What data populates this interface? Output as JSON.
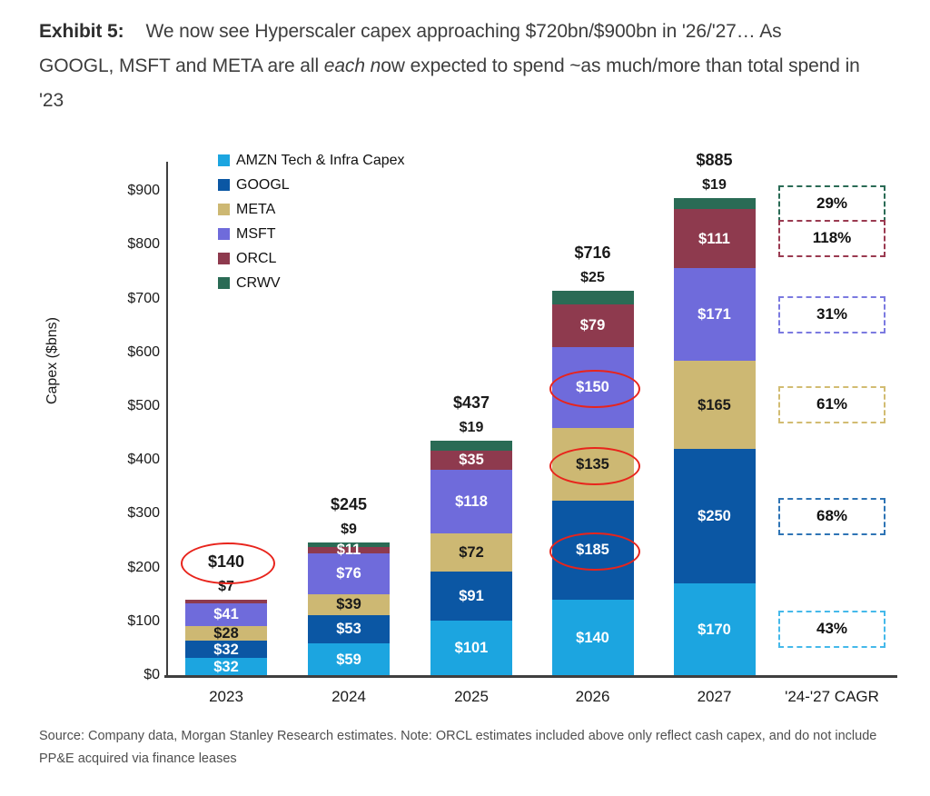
{
  "title": {
    "exhibit_label": "Exhibit 5:",
    "text_before_italic": "We now see Hyperscaler capex approaching $720bn/$900bn in '26/'27… As GOOGL, MSFT and META are all ",
    "italic_text": "each n",
    "text_after_italic": "ow expected to spend ~as much/more than total spend in '23"
  },
  "source_note": "Source: Company data, Morgan Stanley Research estimates. Note: ORCL estimates included above only reflect cash capex, and do not include PP&E acquired via finance leases",
  "chart_data": {
    "type": "bar",
    "stacked": true,
    "ylabel": "Capex ($bns)",
    "ylim": [
      0,
      950
    ],
    "grid": false,
    "legend_position": "top-left-inside",
    "annotation_color": "#e8241c",
    "yticks": [
      {
        "v": 0,
        "label": "$0"
      },
      {
        "v": 100,
        "label": "$100"
      },
      {
        "v": 200,
        "label": "$200"
      },
      {
        "v": 300,
        "label": "$300"
      },
      {
        "v": 400,
        "label": "$400"
      },
      {
        "v": 500,
        "label": "$500"
      },
      {
        "v": 600,
        "label": "$600"
      },
      {
        "v": 700,
        "label": "$700"
      },
      {
        "v": 800,
        "label": "$800"
      },
      {
        "v": 900,
        "label": "$900"
      }
    ],
    "series": [
      {
        "key": "AMZN",
        "name": "AMZN Tech & Infra Capex",
        "color": "#1ca5e0",
        "label_color": "#ffffff"
      },
      {
        "key": "GOOGL",
        "name": "GOOGL",
        "color": "#0b57a4",
        "label_color": "#ffffff"
      },
      {
        "key": "META",
        "name": "META",
        "color": "#cdb873",
        "label_color": "#1a1a1a"
      },
      {
        "key": "MSFT",
        "name": "MSFT",
        "color": "#6f6bdb",
        "label_color": "#ffffff"
      },
      {
        "key": "ORCL",
        "name": "ORCL",
        "color": "#8e3a4e",
        "label_color": "#ffffff"
      },
      {
        "key": "CRWV",
        "name": "CRWV",
        "color": "#2a6b55",
        "label_color": "#ffffff"
      }
    ],
    "categories": [
      "2023",
      "2024",
      "2025",
      "2026",
      "2027"
    ],
    "bars": [
      {
        "category": "2023",
        "total_label": "$140",
        "total_circled": true,
        "above_label": "$7",
        "values": {
          "AMZN": 32,
          "GOOGL": 32,
          "META": 28,
          "MSFT": 41,
          "ORCL": 7,
          "CRWV": 0
        },
        "segment_labels": {
          "AMZN": "$32",
          "GOOGL": "$32",
          "META": "$28",
          "MSFT": "$41"
        },
        "circled_segments": []
      },
      {
        "category": "2024",
        "total_label": "$245",
        "total_circled": false,
        "above_label": "$9",
        "values": {
          "AMZN": 59,
          "GOOGL": 53,
          "META": 39,
          "MSFT": 76,
          "ORCL": 11,
          "CRWV": 9
        },
        "segment_labels": {
          "AMZN": "$59",
          "GOOGL": "$53",
          "META": "$39",
          "MSFT": "$76",
          "ORCL": "$11"
        },
        "circled_segments": []
      },
      {
        "category": "2025",
        "total_label": "$437",
        "total_circled": false,
        "above_label": "$19",
        "values": {
          "AMZN": 101,
          "GOOGL": 91,
          "META": 72,
          "MSFT": 118,
          "ORCL": 35,
          "CRWV": 19
        },
        "segment_labels": {
          "AMZN": "$101",
          "GOOGL": "$91",
          "META": "$72",
          "MSFT": "$118",
          "ORCL": "$35"
        },
        "circled_segments": []
      },
      {
        "category": "2026",
        "total_label": "$716",
        "total_circled": false,
        "above_label": "$25",
        "values": {
          "AMZN": 140,
          "GOOGL": 185,
          "META": 135,
          "MSFT": 150,
          "ORCL": 79,
          "CRWV": 25
        },
        "segment_labels": {
          "AMZN": "$140",
          "GOOGL": "$185",
          "META": "$135",
          "MSFT": "$150",
          "ORCL": "$79"
        },
        "circled_segments": [
          "GOOGL",
          "META",
          "MSFT"
        ]
      },
      {
        "category": "2027",
        "total_label": "$885",
        "total_circled": false,
        "above_label": "$19",
        "values": {
          "AMZN": 170,
          "GOOGL": 250,
          "META": 165,
          "MSFT": 171,
          "ORCL": 111,
          "CRWV": 19
        },
        "segment_labels": {
          "AMZN": "$170",
          "GOOGL": "$250",
          "META": "$165",
          "MSFT": "$171",
          "ORCL": "$111"
        },
        "circled_segments": []
      }
    ],
    "cagr_column": {
      "label": "'24-'27 CAGR",
      "boxes": [
        {
          "series": "CRWV",
          "value": "29%",
          "border_color": "#2a6b55"
        },
        {
          "series": "ORCL",
          "value": "118%",
          "border_color": "#9a3a50"
        },
        {
          "series": "MSFT",
          "value": "31%",
          "border_color": "#7b7ae0"
        },
        {
          "series": "META",
          "value": "61%",
          "border_color": "#d2bc72"
        },
        {
          "series": "GOOGL",
          "value": "68%",
          "border_color": "#2e74b5"
        },
        {
          "series": "AMZN",
          "value": "43%",
          "border_color": "#45b9ea"
        }
      ]
    }
  }
}
